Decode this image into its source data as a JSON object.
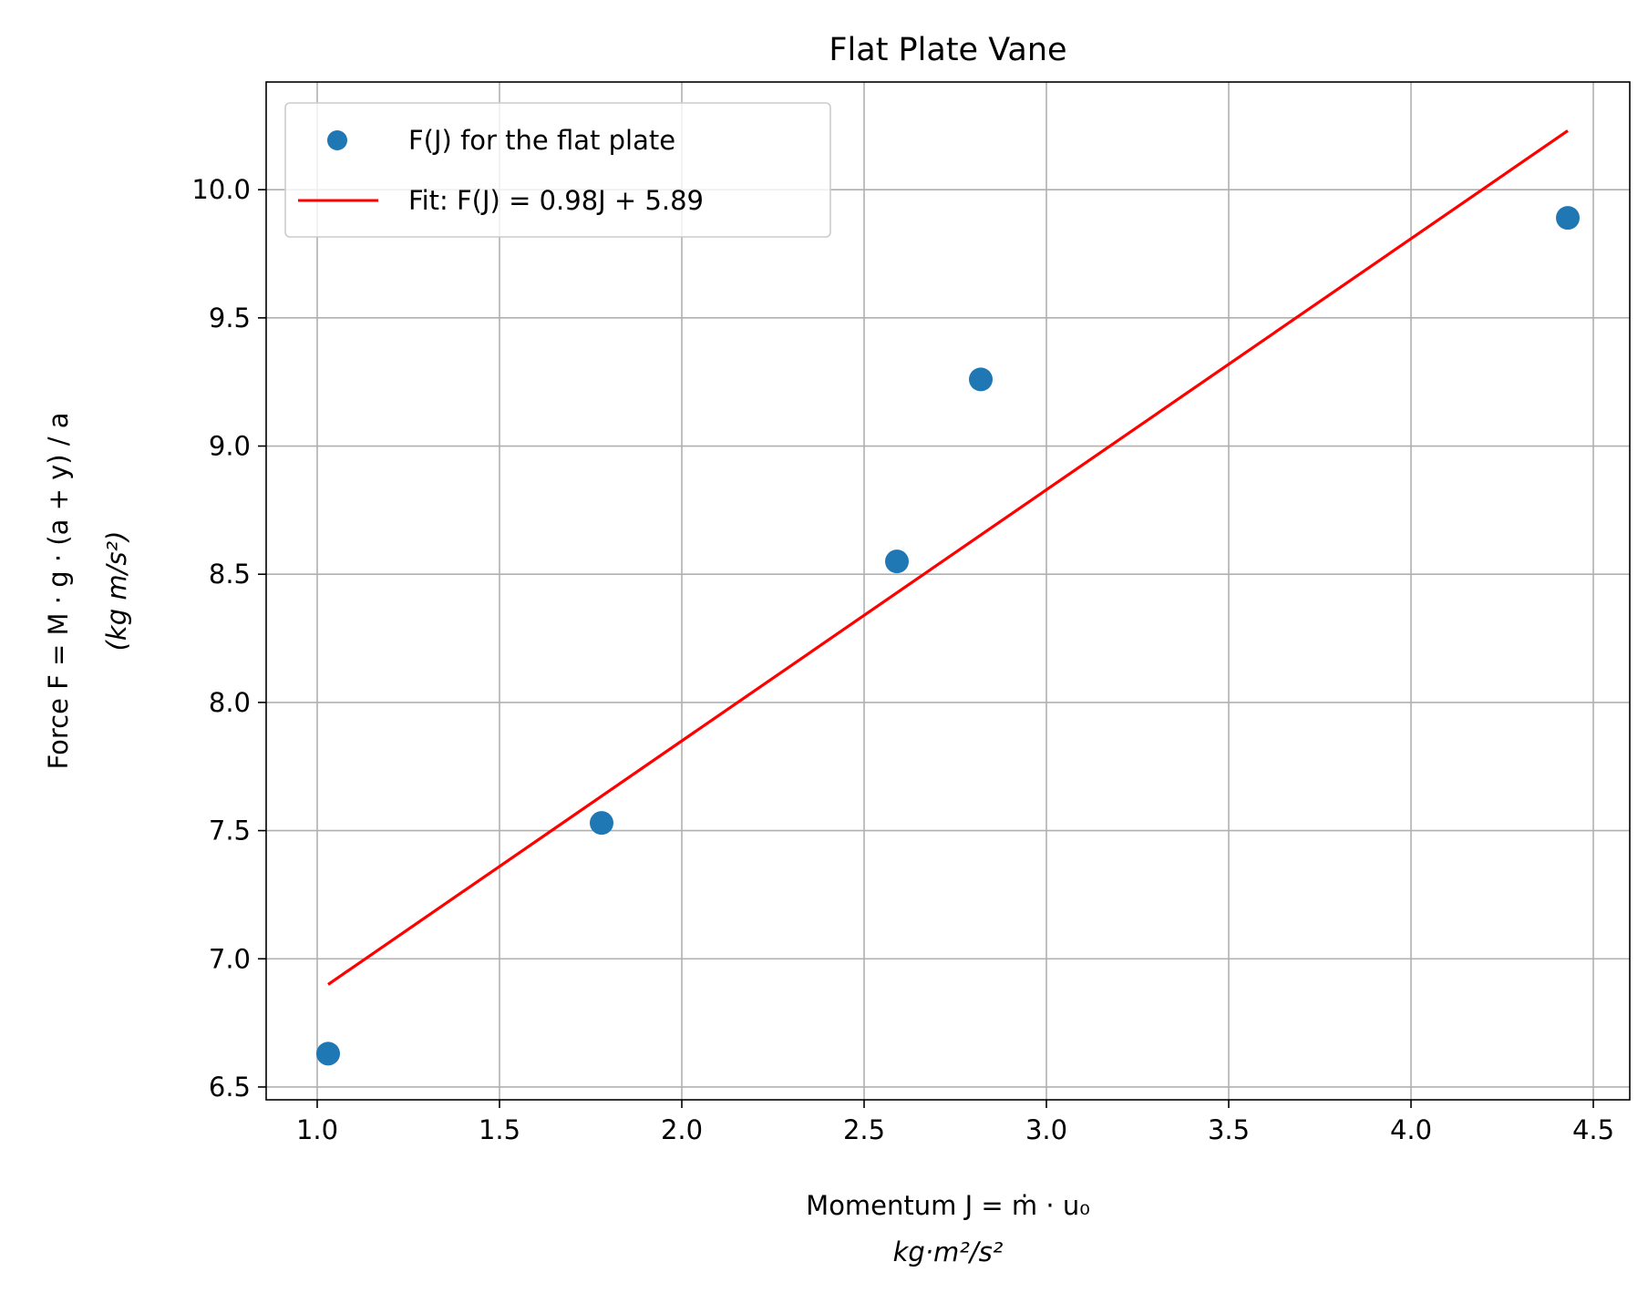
{
  "chart_data": {
    "type": "scatter",
    "title": "Flat Plate Vane",
    "xlabel": "Momentum J = ṁ · u₀",
    "xlabel_units": "kg·m²/s²",
    "ylabel": "Force F = M · g · (a + y) / a",
    "ylabel_units": "(kg m/s²)",
    "xlim": [
      0.86,
      4.6
    ],
    "ylim": [
      6.45,
      10.42
    ],
    "xticks": [
      1.0,
      1.5,
      2.0,
      2.5,
      3.0,
      3.5,
      4.0,
      4.5
    ],
    "xtick_labels": [
      "1.0",
      "1.5",
      "2.0",
      "2.5",
      "3.0",
      "3.5",
      "4.0",
      "4.5"
    ],
    "yticks": [
      6.5,
      7.0,
      7.5,
      8.0,
      8.5,
      9.0,
      9.5,
      10.0
    ],
    "ytick_labels": [
      "6.5",
      "7.0",
      "7.5",
      "8.0",
      "8.5",
      "9.0",
      "9.5",
      "10.0"
    ],
    "grid": true,
    "legend_position": "top-left",
    "series": [
      {
        "name": "F(J) for the flat plate",
        "kind": "scatter",
        "color": "#1f77b4",
        "x": [
          1.03,
          1.78,
          2.59,
          2.82,
          4.43
        ],
        "y": [
          6.63,
          7.53,
          8.55,
          9.26,
          9.89
        ]
      },
      {
        "name": "Fit: F(J) = 0.98J + 5.89",
        "kind": "line",
        "color": "#ff0000",
        "slope": 0.98,
        "intercept": 5.89,
        "x": [
          1.03,
          4.43
        ],
        "y": [
          6.9,
          10.23
        ]
      }
    ]
  }
}
